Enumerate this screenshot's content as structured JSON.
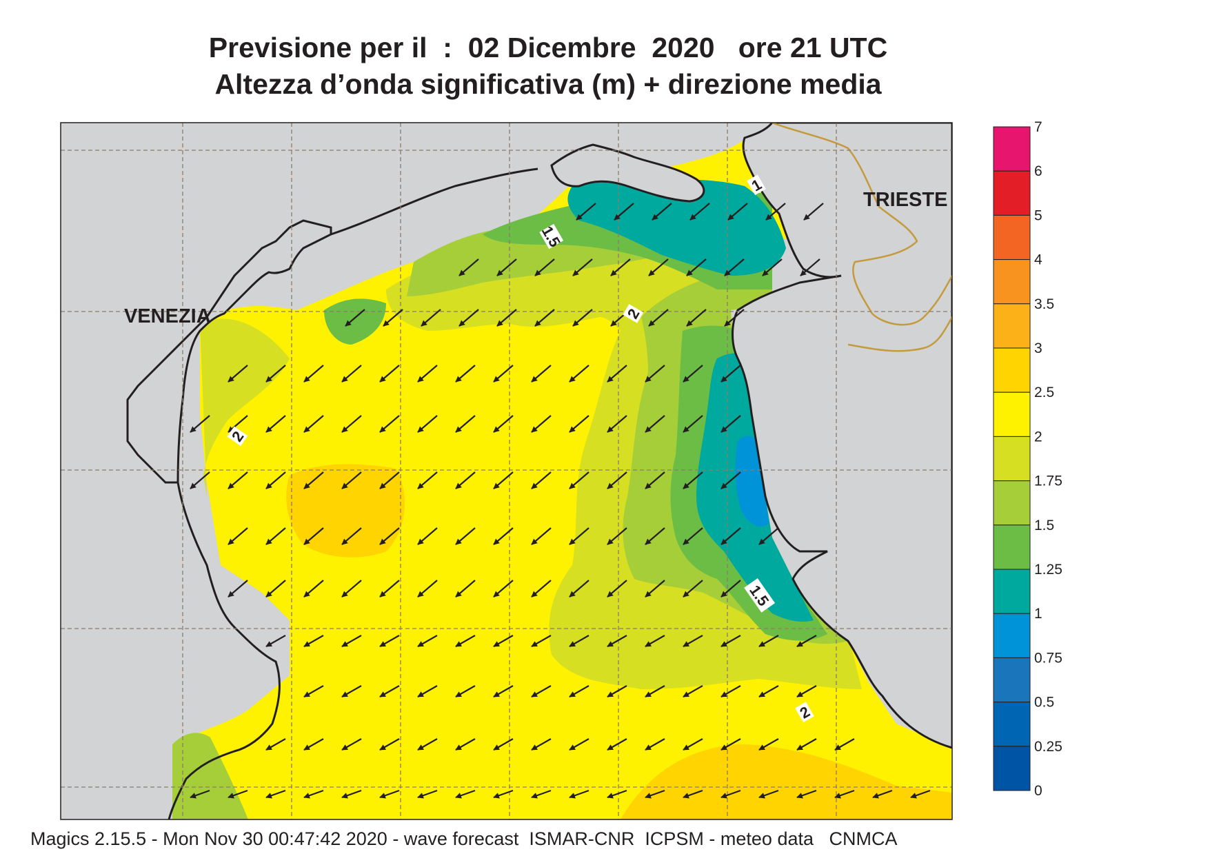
{
  "header": {
    "line1": "Previsione per il  :  02 Dicembre  2020   ore 21 UTC",
    "line2": "Altezza d’onda significativa (m) + direzione media"
  },
  "places": {
    "venezia": "VENEZIA",
    "trieste": "TRIESTE"
  },
  "contour_labels": [
    "1",
    "1.5",
    "2",
    "2",
    "2",
    "1.5"
  ],
  "legend": {
    "ticks": [
      "7",
      "6",
      "5",
      "4",
      "3.5",
      "3",
      "2.5",
      "2",
      "1.75",
      "1.5",
      "1.25",
      "1",
      "0.75",
      "0.5",
      "0.25",
      "0"
    ],
    "colors": [
      "#e8156e",
      "#e31e26",
      "#f26522",
      "#f7931e",
      "#fbb117",
      "#ffd400",
      "#fff200",
      "#d7df23",
      "#a6ce39",
      "#6cbd45",
      "#00a99d",
      "#0093d8",
      "#1b75bb",
      "#0066b3",
      "#0054a6"
    ]
  },
  "colors": {
    "land": "#d1d3d4",
    "coast": "#231f20",
    "border": "#c49a3c",
    "grid": "#8c7b6b",
    "arrow": "#231f20"
  },
  "footer": {
    "text": "Magics 2.15.5 - Mon Nov 30 00:47:42 2020 - wave forecast  ISMAR-CNR  ICPSM - meteo data   CNMCA"
  }
}
